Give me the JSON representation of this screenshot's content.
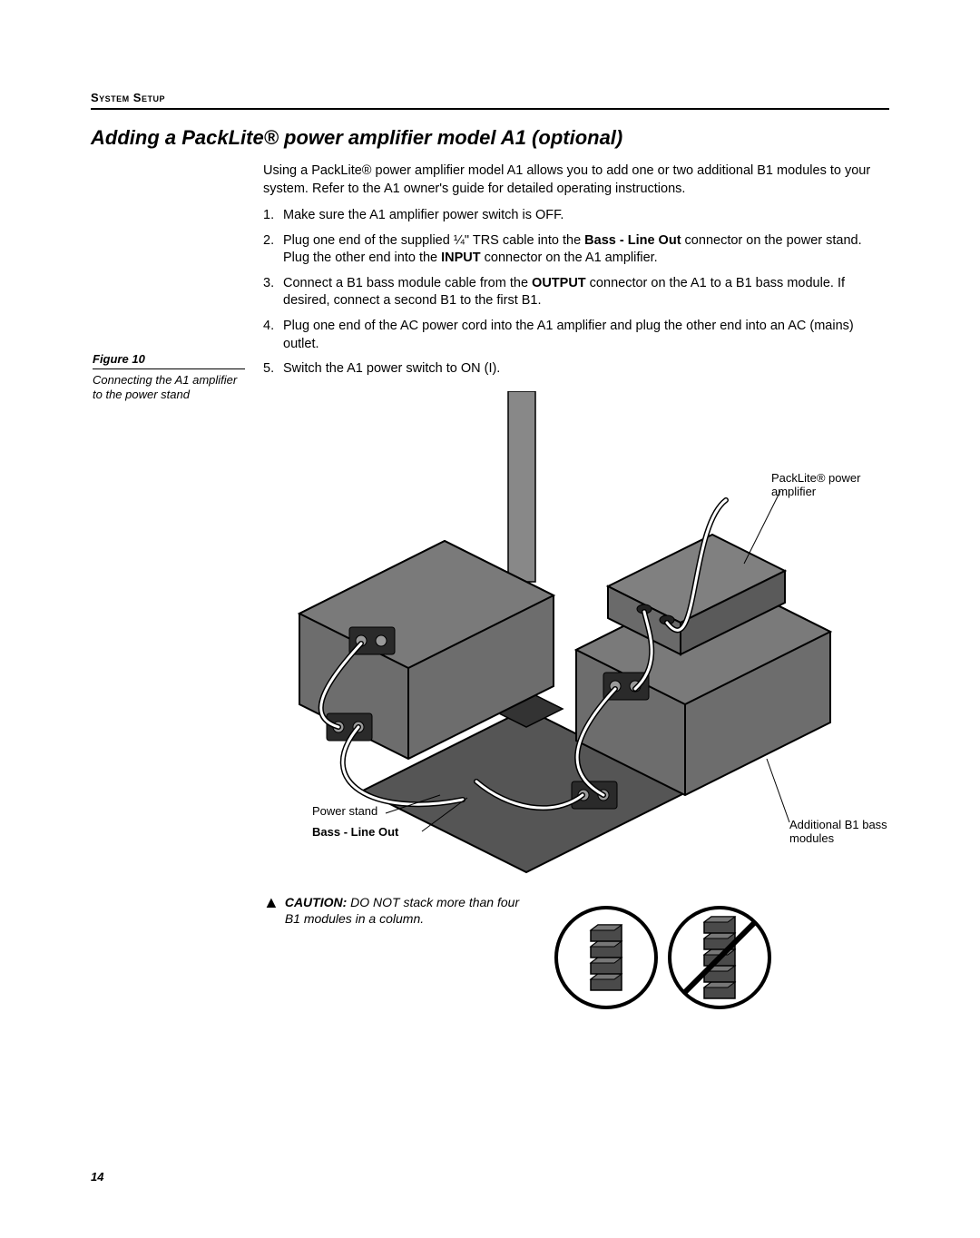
{
  "header": {
    "section": "System Setup"
  },
  "title": "Adding a PackLite® power amplifier model A1 (optional)",
  "intro": "Using a PackLite® power amplifier model A1 allows you to add one or two additional B1 modules to your system. Refer to the A1 owner's guide for detailed operating instructions.",
  "steps": [
    "Make sure the A1 amplifier power switch is OFF.",
    "Plug one end of the supplied ¼\" TRS cable into the <b>Bass - Line Out</b> connector on the power stand. Plug the other end into the <b>INPUT</b> connector on the A1 amplifier.",
    "Connect a B1 bass module cable from the <b>OUTPUT</b> connector on the A1 to a B1 bass module. If desired, connect a second B1 to the first B1.",
    "Plug one end of the AC power cord into the A1 amplifier and plug the other end into an AC (mains) outlet.",
    "Switch the A1 power switch to ON (I)."
  ],
  "figure": {
    "label": "Figure 10",
    "caption": "Connecting the A1 amplifier to the power stand",
    "callouts": {
      "packlite": "PackLite® power amplifier",
      "powerstand": "Power stand",
      "bassline": "Bass - Line Out",
      "additional": "Additional B1 bass modules"
    },
    "style": {
      "module_fill": "#6d6d6d",
      "module_stroke": "#000000",
      "cable_color": "#ffffff",
      "cable_outline": "#000000",
      "pole_fill": "#888888",
      "amp_fill": "#808080",
      "base_fill": "#555555"
    }
  },
  "caution": {
    "label": "CAUTION:",
    "text": "DO NOT stack more than four B1 modules in a column.",
    "ok_count": 4,
    "bad_count": 5
  },
  "page_number": "14"
}
